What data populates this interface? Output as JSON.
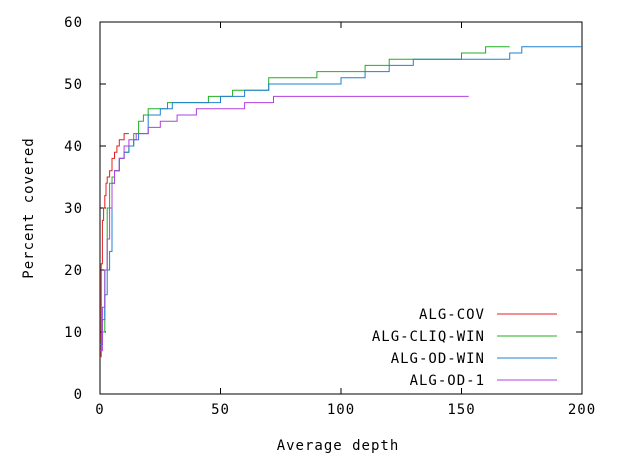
{
  "chart_data": {
    "type": "line",
    "title": "",
    "xlabel": "Average depth",
    "ylabel": "Percent covered",
    "xlim": [
      0,
      200
    ],
    "ylim": [
      0,
      60
    ],
    "xticks": [
      0,
      50,
      100,
      150,
      200
    ],
    "xtick_labels": [
      "0",
      "50",
      "100",
      "150",
      "200"
    ],
    "yticks": [
      0,
      10,
      20,
      30,
      40,
      50,
      60
    ],
    "ytick_labels": [
      "0",
      "10",
      "20",
      "30",
      "40",
      "50",
      "60"
    ],
    "grid": false,
    "legend_position": "bottom-right",
    "series": [
      {
        "name": "ALG-COV",
        "color": "#e02020",
        "x": [
          0,
          0.5,
          1,
          1.5,
          2,
          2.5,
          3,
          4,
          5,
          6,
          7,
          8,
          9,
          10,
          12
        ],
        "y": [
          6,
          21,
          28,
          30,
          32,
          34,
          35,
          36,
          38,
          39,
          40,
          41,
          41,
          42,
          42
        ]
      },
      {
        "name": "ALG-CLIQ-WIN",
        "color": "#20b020",
        "x": [
          0,
          1,
          2,
          3,
          4,
          5,
          6,
          8,
          10,
          12,
          14,
          16,
          18,
          20,
          25,
          28,
          35,
          40,
          45,
          50,
          55,
          60,
          65,
          70,
          80,
          90,
          100,
          110,
          120,
          130,
          140,
          150,
          160,
          170
        ],
        "y": [
          8,
          10,
          20,
          30,
          34,
          35,
          36,
          38,
          39,
          40,
          42,
          44,
          45,
          46,
          46,
          47,
          47,
          47,
          48,
          48,
          49,
          49,
          49,
          51,
          51,
          52,
          52,
          53,
          54,
          54,
          54,
          55,
          56,
          56
        ]
      },
      {
        "name": "ALG-OD-WIN",
        "color": "#2080d0",
        "x": [
          0,
          1,
          2,
          3,
          4,
          5,
          6,
          8,
          10,
          12,
          14,
          16,
          20,
          25,
          30,
          40,
          50,
          60,
          70,
          80,
          90,
          100,
          110,
          120,
          130,
          140,
          150,
          160,
          170,
          175,
          180,
          190,
          200
        ],
        "y": [
          8,
          12,
          16,
          20,
          23,
          34,
          36,
          38,
          39,
          40,
          41,
          42,
          45,
          46,
          47,
          47,
          48,
          49,
          50,
          50,
          50,
          51,
          52,
          53,
          54,
          54,
          54,
          54,
          55,
          56,
          56,
          56,
          56
        ]
      },
      {
        "name": "ALG-OD-1",
        "color": "#b040e0",
        "x": [
          0,
          1,
          2,
          3,
          4,
          5,
          6,
          8,
          10,
          12,
          15,
          20,
          25,
          32,
          40,
          50,
          60,
          72,
          80,
          90,
          100,
          110,
          120,
          130,
          140,
          153
        ],
        "y": [
          7,
          14,
          20,
          25,
          30,
          34,
          36,
          38,
          40,
          41,
          42,
          43,
          44,
          45,
          46,
          46,
          47,
          48,
          48,
          48,
          48,
          48,
          48,
          48,
          48,
          48
        ]
      }
    ]
  }
}
